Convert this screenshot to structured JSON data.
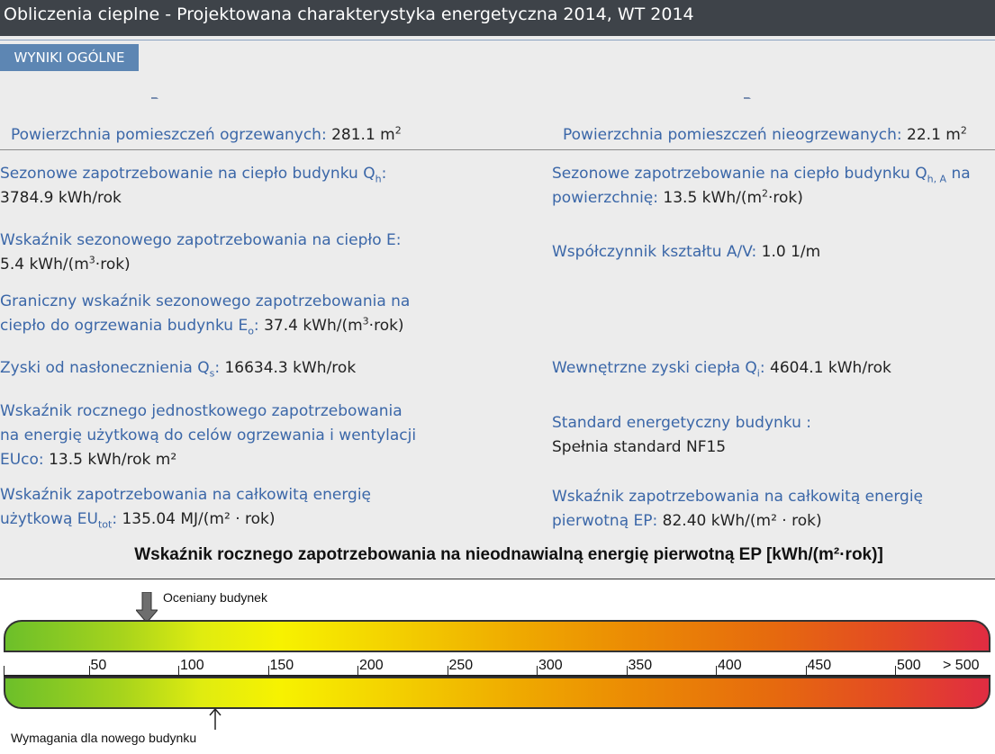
{
  "window": {
    "title": "Obliczenia cieplne - Projektowana charakterystyka energetyczna 2014, WT 2014"
  },
  "tab": {
    "label": "WYNIKI OGÓLNE"
  },
  "areas": {
    "heated": {
      "label": "Powierzchnia pomieszczeń ogrzewanych:",
      "value": "281.1 m",
      "sup": "2"
    },
    "unheated": {
      "label": "Powierzchnia pomieszczeń nieogrzewanych:",
      "value": "22.1 m",
      "sup": "2"
    }
  },
  "left": {
    "qh": {
      "label": "Sezonowe zapotrzebowanie na ciepło budynku Q",
      "sub": "h",
      "after": ":",
      "value": "3784.9 kWh/rok"
    },
    "e": {
      "label": "Wskaźnik sezonowego zapotrzebowania na ciepło E:",
      "value_a": "5.4 kWh/(m",
      "value_sup": "3",
      "value_b": "·rok)"
    },
    "eo": {
      "line1": "Graniczny wskaźnik sezonowego zapotrzebowania na",
      "line2": "ciepło do ogrzewania budynku E",
      "sub": "o",
      "after": ":",
      "value_a": "37.4 kWh/(m",
      "value_sup": "3",
      "value_b": "·rok)"
    },
    "qs": {
      "label": "Zyski od nasłonecznienia Q",
      "sub": "s",
      "after": ":",
      "value": "16634.3 kWh/rok"
    },
    "euco": {
      "line1": "Wskaźnik rocznego jednostkowego zapotrzebowania",
      "line2": "na energię użytkową do celów ogrzewania i wentylacji",
      "line3": "EUco:",
      "value": "13.5 kWh/rok m²"
    },
    "eutot": {
      "line1": "Wskaźnik zapotrzebowania na całkowitą energię",
      "line2": "użytkową EU",
      "sub": "tot",
      "after": ":",
      "value": "135.04 MJ/(m² · rok)"
    }
  },
  "right": {
    "qha": {
      "line1": "Sezonowe zapotrzebowanie na ciepło budynku Q",
      "sub": "h, A",
      "after": "na",
      "line2": "powierzchnię:",
      "value_a": "13.5 kWh/(m",
      "value_sup": "2",
      "value_b": "·rok)"
    },
    "av": {
      "label": "Współczynnik kształtu A/V:",
      "value": "1.0 1/m"
    },
    "qi": {
      "label": "Wewnętrzne zyski ciepła Q",
      "sub": "i",
      "after": ":",
      "value": "4604.1 kWh/rok"
    },
    "std": {
      "label": "Standard energetyczny budynku :",
      "value": "Spełnia standard NF15"
    },
    "ep": {
      "line1": "Wskaźnik zapotrzebowania na całkowitą energię",
      "line2": "pierwotną EP:",
      "value": "82.40 kWh/(m² · rok)"
    }
  },
  "scale": {
    "title": "Wskaźnik rocznego zapotrzebowania na nieodnawialną energię pierwotną EP [kWh/(m²·rok)]",
    "ticks": [
      "50",
      "100",
      "150",
      "200",
      "250",
      "300",
      "350",
      "400",
      "450",
      "500",
      "> 500"
    ],
    "evaluated_label": "Oceniany budynek",
    "evaluated_value": 82.4,
    "required_label": "Wymagania dla nowego budynku",
    "required_value": 120,
    "colors": {
      "start": "#6cbf2a",
      "middle": "#f7f200",
      "end": "#e02c42"
    }
  }
}
